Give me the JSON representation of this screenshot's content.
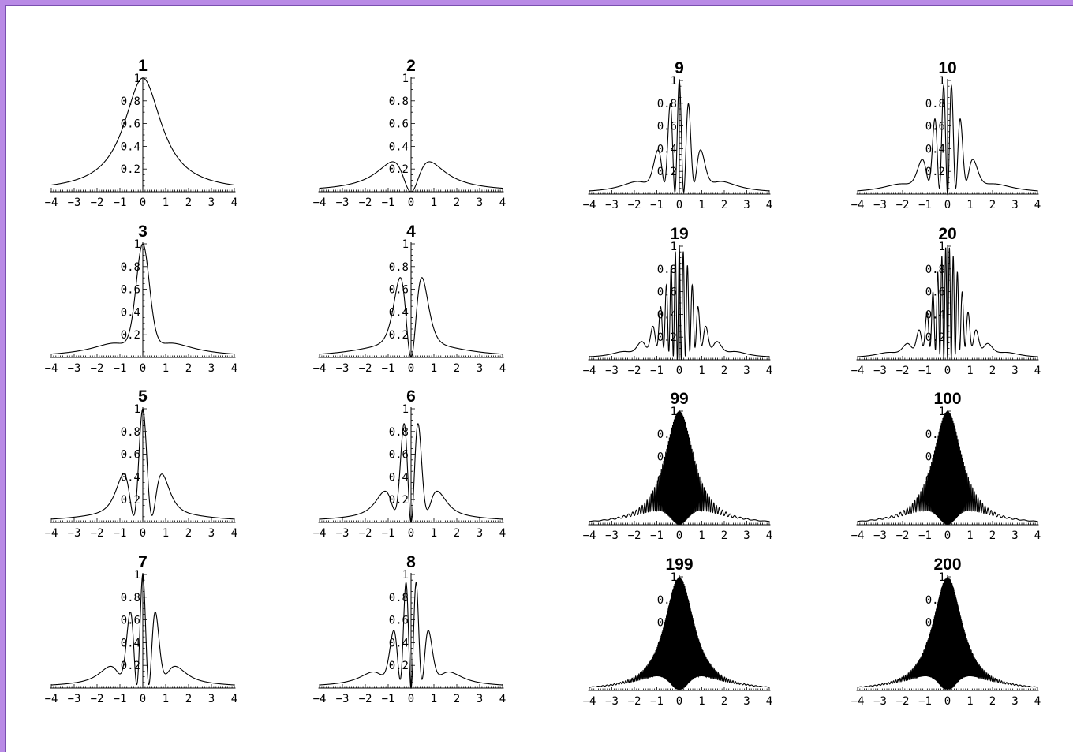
{
  "chart_data": {
    "type": "line",
    "xlim": [
      -4,
      4
    ],
    "ylim": [
      0,
      1
    ],
    "x_ticks": [
      "−4",
      "−3",
      "−2",
      "−1",
      "0",
      "1",
      "2",
      "3",
      "4"
    ],
    "y_ticks": [
      "0.2",
      "0.4",
      "0.6",
      "0.8",
      "1"
    ],
    "line_color": "#000000",
    "frame_color": "#b98ae6",
    "panels": [
      {
        "title": "1",
        "n": 1
      },
      {
        "title": "2",
        "n": 2
      },
      {
        "title": "3",
        "n": 3
      },
      {
        "title": "4",
        "n": 4
      },
      {
        "title": "5",
        "n": 5
      },
      {
        "title": "6",
        "n": 6
      },
      {
        "title": "7",
        "n": 7
      },
      {
        "title": "8",
        "n": 8
      },
      {
        "title": "9",
        "n": 9
      },
      {
        "title": "10",
        "n": 10
      },
      {
        "title": "19",
        "n": 19
      },
      {
        "title": "20",
        "n": 20
      },
      {
        "title": "99",
        "n": 99
      },
      {
        "title": "100",
        "n": 100
      },
      {
        "title": "199",
        "n": 199
      },
      {
        "title": "200",
        "n": 200
      }
    ]
  }
}
